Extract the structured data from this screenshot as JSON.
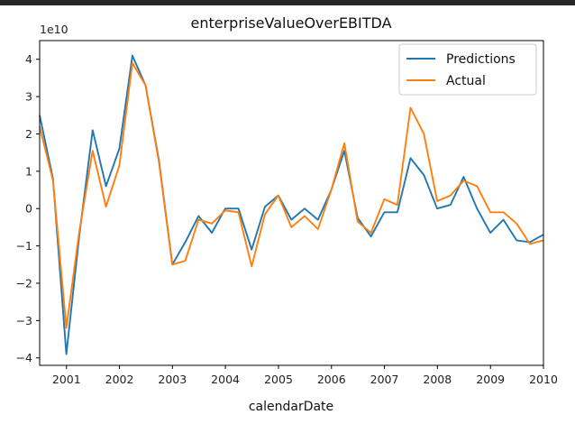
{
  "chart_data": {
    "type": "line",
    "title": "enterpriseValueOverEBITDA",
    "xlabel": "calendarDate",
    "ylabel": "",
    "y_offset_label": "1e10",
    "y_scale": 10000000000,
    "xlim": [
      "2000-06-30",
      "2010-01-01"
    ],
    "ylim": [
      -4.2,
      4.5
    ],
    "x_ticks": [
      "2001",
      "2002",
      "2003",
      "2004",
      "2005",
      "2006",
      "2007",
      "2008",
      "2009",
      "2010"
    ],
    "y_ticks": [
      -4,
      -3,
      -2,
      -1,
      0,
      1,
      2,
      3,
      4
    ],
    "grid": false,
    "legend_position": "top-right",
    "x": [
      "2000-06-30",
      "2000-09-30",
      "2000-12-31",
      "2001-03-31",
      "2001-06-30",
      "2001-09-30",
      "2001-12-31",
      "2002-03-31",
      "2002-06-30",
      "2002-09-30",
      "2002-12-31",
      "2003-03-31",
      "2003-06-30",
      "2003-09-30",
      "2003-12-31",
      "2004-03-31",
      "2004-06-30",
      "2004-09-30",
      "2004-12-31",
      "2005-03-31",
      "2005-06-30",
      "2005-09-30",
      "2005-12-31",
      "2006-03-31",
      "2006-06-30",
      "2006-09-30",
      "2006-12-31",
      "2007-03-31",
      "2007-06-30",
      "2007-09-30",
      "2007-12-31",
      "2008-03-31",
      "2008-06-30",
      "2008-09-30",
      "2008-12-31",
      "2009-03-31",
      "2009-06-30",
      "2009-09-30",
      "2009-12-31"
    ],
    "series": [
      {
        "name": "Predictions",
        "color": "#1f77b4",
        "values": [
          2.5,
          0.8,
          -3.9,
          -0.7,
          2.1,
          0.6,
          1.6,
          4.1,
          3.3,
          1.3,
          -1.5,
          -0.9,
          -0.2,
          -0.65,
          0.0,
          0.0,
          -1.1,
          0.05,
          0.35,
          -0.3,
          0.0,
          -0.3,
          0.5,
          1.55,
          -0.25,
          -0.75,
          -0.1,
          -0.1,
          1.35,
          0.9,
          0.0,
          0.1,
          0.85,
          0.0,
          -0.65,
          -0.3,
          -0.85,
          -0.9,
          -0.7
        ]
      },
      {
        "name": "Actual",
        "color": "#ff7f0e",
        "values": [
          2.2,
          0.75,
          -3.2,
          -0.6,
          1.55,
          0.05,
          1.15,
          3.9,
          3.3,
          1.25,
          -1.5,
          -1.4,
          -0.3,
          -0.4,
          -0.05,
          -0.1,
          -1.55,
          -0.15,
          0.35,
          -0.5,
          -0.2,
          -0.55,
          0.5,
          1.75,
          -0.35,
          -0.65,
          0.25,
          0.1,
          2.7,
          2.0,
          0.2,
          0.35,
          0.75,
          0.6,
          -0.1,
          -0.1,
          -0.4,
          -0.95,
          -0.85
        ]
      }
    ]
  }
}
